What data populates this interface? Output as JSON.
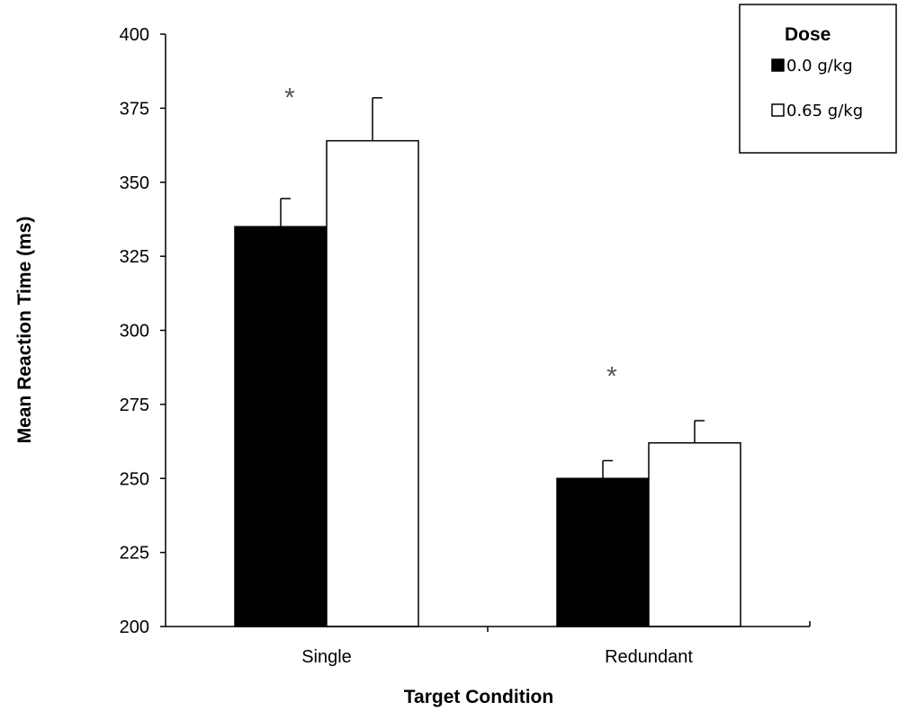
{
  "chart_data": {
    "type": "bar",
    "title": "",
    "xlabel": "Target Condition",
    "ylabel": "Mean Reaction Time (ms)",
    "ylim": [
      200,
      400
    ],
    "yticks": [
      200,
      225,
      250,
      275,
      300,
      325,
      350,
      375,
      400
    ],
    "categories": [
      "Single",
      "Redundant"
    ],
    "series": [
      {
        "name": "0.0 g/kg",
        "values": [
          335,
          250
        ],
        "errors": [
          9.5,
          6
        ],
        "color": "#000000"
      },
      {
        "name": "0.65 g/kg",
        "values": [
          364,
          262
        ],
        "errors": [
          14.5,
          7.5
        ],
        "color": "#ffffff"
      }
    ],
    "legend": {
      "title": "Dose",
      "placement": "top-right"
    },
    "annotations": [
      {
        "text": "*",
        "category": "Single",
        "value": 381
      },
      {
        "text": "*",
        "category": "Redundant",
        "value": 287
      }
    ],
    "grid": false
  }
}
